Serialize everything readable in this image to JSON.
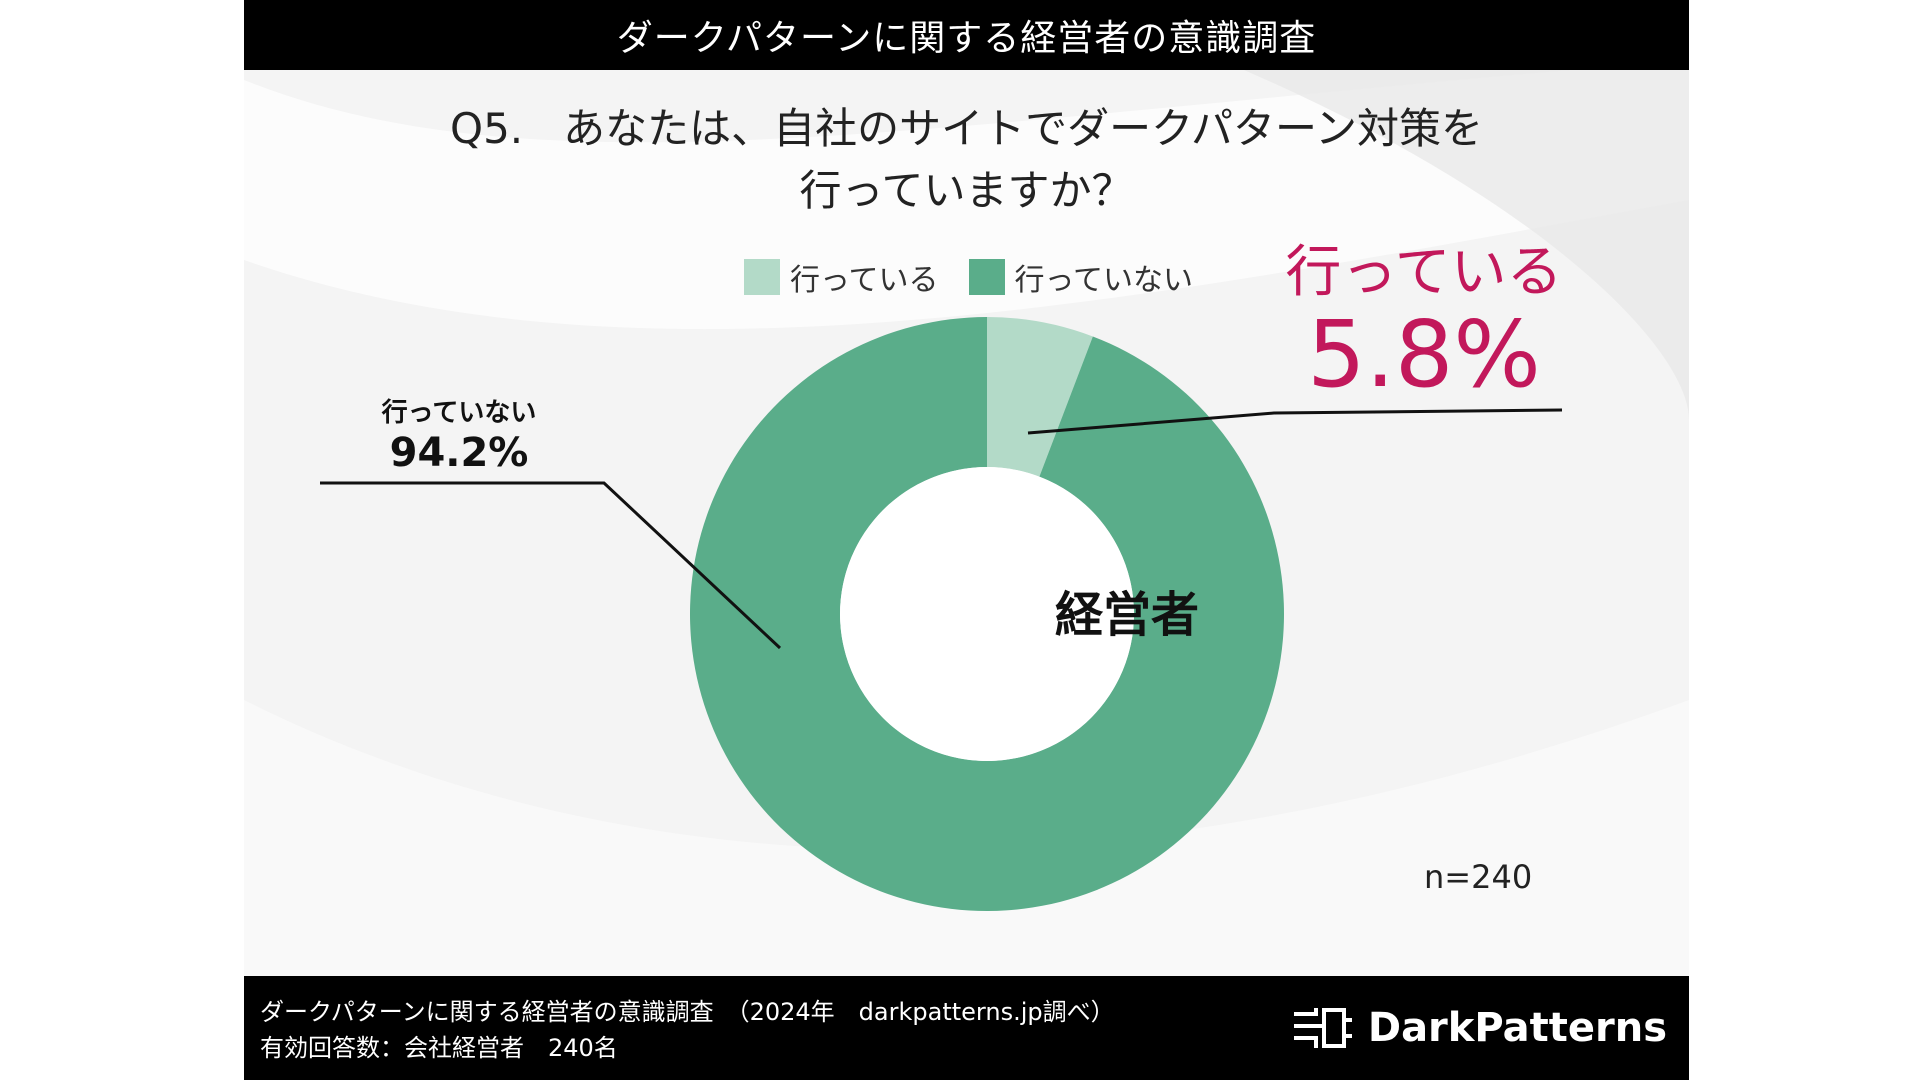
{
  "header": {
    "title": "ダークパターンに関する経営者の意識調査"
  },
  "question": {
    "number": "Q5.",
    "line1": "あなたは、自社のサイトでダークパターン対策を",
    "line2": "行っていますか？"
  },
  "chart_data": {
    "type": "pie",
    "categories": [
      "行っている",
      "行っていない"
    ],
    "values": [
      5.8,
      94.2
    ],
    "unit": "%",
    "colors": [
      "#b3dac8",
      "#5aad8a"
    ],
    "center_label": "経営者",
    "legend_position": "top",
    "n": "n=240",
    "annotations": {
      "highlight_label": "行っている",
      "highlight_value": "5.8%",
      "secondary_label": "行っていない",
      "secondary_value": "94.2%"
    }
  },
  "footer": {
    "line1": "ダークパターンに関する経営者の意識調査　（2024年　darkpatterns.jp調べ）",
    "line2": "有効回答数：会社経営者　240名",
    "brand": "DarkPatterns",
    "brand_icon": "chip-icon"
  }
}
